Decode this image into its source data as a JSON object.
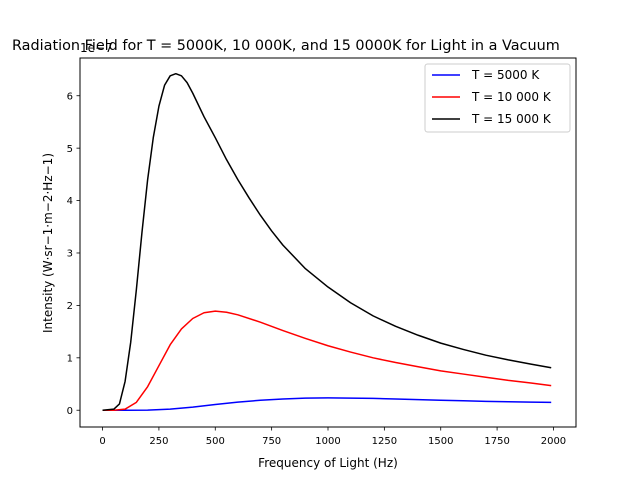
{
  "chart_data": {
    "type": "line",
    "title": "Radiation Field for T = 5000K, 10 000K, and 15 0000K for Light in a Vacuum",
    "xlabel": "Frequency of Light (Hz)",
    "ylabel": "Intensity (W·sr−1·m−2·Hz−1)",
    "y_offset_label": "1e−7",
    "xlim": [
      -100,
      2100
    ],
    "ylim": [
      -0.32,
      6.72
    ],
    "x_ticks": [
      0,
      250,
      500,
      750,
      1000,
      1250,
      1500,
      1750,
      2000
    ],
    "y_ticks": [
      0,
      1,
      2,
      3,
      4,
      5,
      6
    ],
    "grid": false,
    "legend_position": "upper right",
    "series": [
      {
        "name": "T = 5000 K",
        "color": "#0000ff",
        "x": [
          0,
          100,
          200,
          300,
          400,
          500,
          600,
          700,
          800,
          900,
          1000,
          1100,
          1200,
          1300,
          1400,
          1500,
          1600,
          1700,
          1800,
          1900,
          1990
        ],
        "y": [
          0,
          0.0,
          0.002,
          0.02,
          0.06,
          0.11,
          0.155,
          0.19,
          0.215,
          0.23,
          0.235,
          0.232,
          0.225,
          0.215,
          0.203,
          0.19,
          0.18,
          0.17,
          0.162,
          0.155,
          0.15
        ]
      },
      {
        "name": "T = 10 000 K",
        "color": "#ff0000",
        "x": [
          0,
          50,
          100,
          150,
          200,
          250,
          300,
          350,
          400,
          450,
          500,
          550,
          600,
          700,
          800,
          900,
          1000,
          1100,
          1200,
          1300,
          1400,
          1500,
          1600,
          1700,
          1800,
          1900,
          1990
        ],
        "y": [
          0,
          0.0,
          0.02,
          0.15,
          0.45,
          0.85,
          1.25,
          1.55,
          1.75,
          1.86,
          1.89,
          1.87,
          1.82,
          1.68,
          1.52,
          1.37,
          1.23,
          1.11,
          1.0,
          0.91,
          0.83,
          0.75,
          0.69,
          0.63,
          0.57,
          0.52,
          0.47
        ]
      },
      {
        "name": "T = 15 000 K",
        "color": "#000000",
        "x": [
          0,
          50,
          75,
          100,
          125,
          150,
          175,
          200,
          225,
          250,
          275,
          300,
          325,
          350,
          375,
          400,
          450,
          500,
          550,
          600,
          650,
          700,
          750,
          800,
          900,
          1000,
          1100,
          1200,
          1300,
          1400,
          1500,
          1600,
          1700,
          1800,
          1900,
          1990
        ],
        "y": [
          0,
          0.02,
          0.12,
          0.55,
          1.3,
          2.3,
          3.4,
          4.4,
          5.2,
          5.8,
          6.2,
          6.38,
          6.42,
          6.38,
          6.25,
          6.05,
          5.6,
          5.2,
          4.78,
          4.4,
          4.05,
          3.72,
          3.42,
          3.15,
          2.7,
          2.35,
          2.05,
          1.8,
          1.6,
          1.43,
          1.28,
          1.16,
          1.05,
          0.96,
          0.88,
          0.81
        ]
      }
    ]
  }
}
